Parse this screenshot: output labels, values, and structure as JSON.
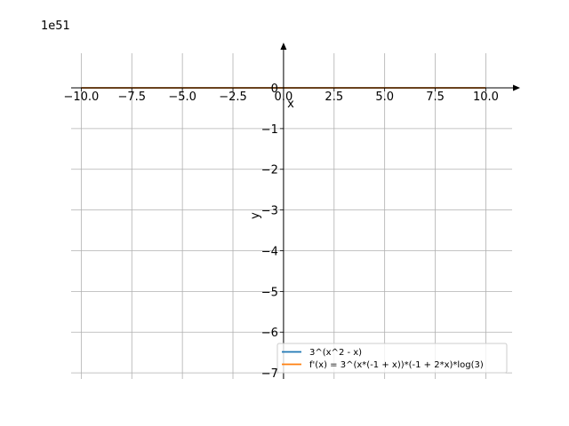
{
  "chart_data": {
    "type": "line",
    "offset_text": "1e51",
    "xlabel": "x",
    "ylabel": "y",
    "xlim": [
      -10.5,
      11.3
    ],
    "ylim": [
      -7.15,
      0.85
    ],
    "x_ticks": [
      -10.0,
      -7.5,
      -5.0,
      -2.5,
      0.0,
      2.5,
      5.0,
      7.5,
      10.0
    ],
    "x_tick_labels": [
      "−10.0",
      "−7.5",
      "−5.0",
      "−2.5",
      "0.0",
      "2.5",
      "5.0",
      "7.5",
      "10.0"
    ],
    "y_ticks": [
      0,
      -1,
      -2,
      -3,
      -4,
      -5,
      -6,
      -7
    ],
    "y_tick_labels": [
      "0",
      "−1",
      "−2",
      "−3",
      "−4",
      "−5",
      "−6",
      "−7"
    ],
    "grid": true,
    "legend_position": "lower right",
    "series": [
      {
        "name": "3^(x^2 - x)",
        "color": "#1f77b4",
        "x": [
          -10,
          -7.5,
          -5,
          -2.5,
          0,
          2.5,
          5,
          7.5,
          10
        ],
        "y": [
          0,
          0,
          0,
          0,
          0,
          0,
          0,
          0,
          0
        ]
      },
      {
        "name": "f'(x) = 3^(x*(-1 + x))*(-1 + 2*x)*log(3)",
        "color": "#ff7f0e",
        "x": [
          -10,
          -7.5,
          -5,
          -2.5,
          0,
          2.5,
          5,
          7.5,
          10
        ],
        "y": [
          0,
          0,
          0,
          0,
          0,
          0,
          0,
          0,
          0
        ]
      }
    ]
  }
}
